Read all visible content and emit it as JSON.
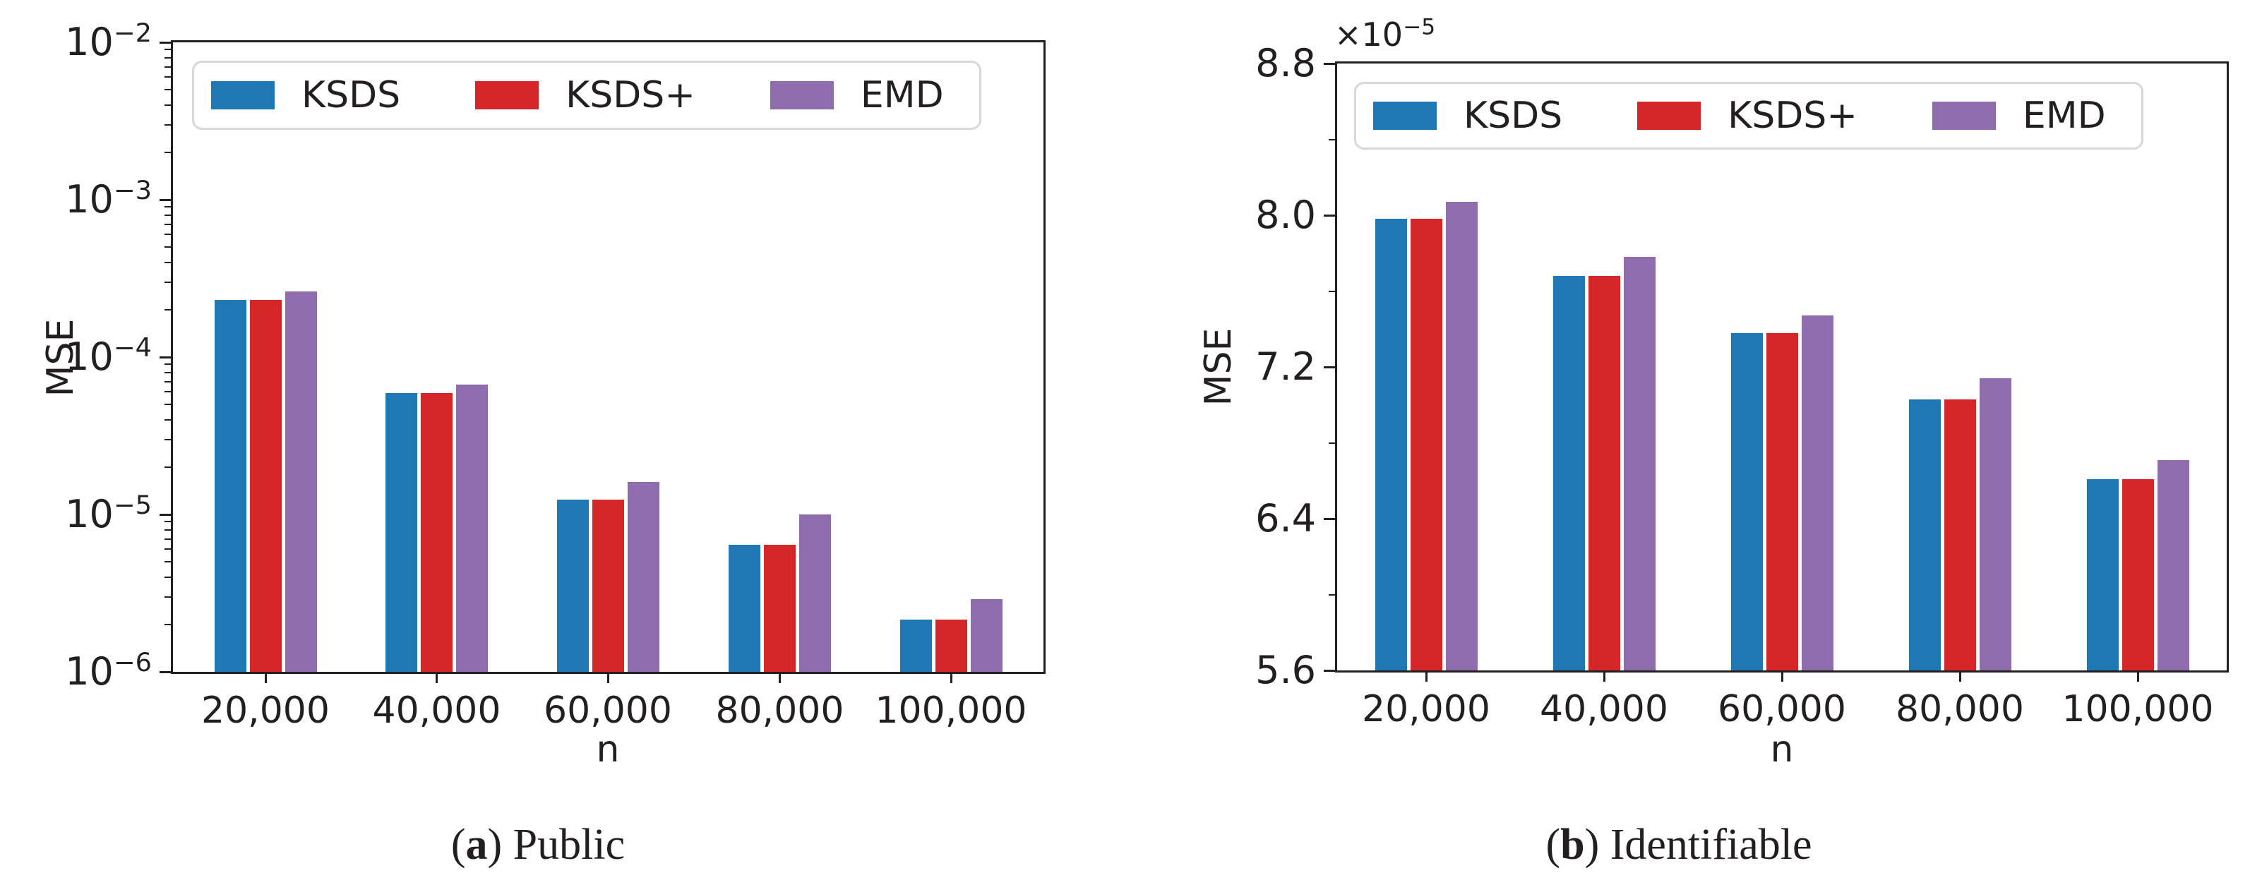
{
  "figure": {
    "background": "#ffffff",
    "text_color": "#231f20",
    "captions": [
      {
        "letter": "a",
        "text": "Public"
      },
      {
        "letter": "b",
        "text": "Identifiable"
      }
    ]
  },
  "chart_data": [
    {
      "type": "bar",
      "caption": "(a) Public",
      "xlabel": "n",
      "ylabel": "MSE",
      "yscale": "log",
      "ylim": [
        1e-06,
        0.01
      ],
      "grid": false,
      "yticks": [
        {
          "base": "10",
          "exp": "−2",
          "value": 0.01
        },
        {
          "base": "10",
          "exp": "−3",
          "value": 0.001
        },
        {
          "base": "10",
          "exp": "−4",
          "value": 0.0001
        },
        {
          "base": "10",
          "exp": "−5",
          "value": 1e-05
        },
        {
          "base": "10",
          "exp": "−6",
          "value": 1e-06
        }
      ],
      "categories": [
        "20,000",
        "40,000",
        "60,000",
        "80,000",
        "100,000"
      ],
      "series": [
        {
          "name": "KSDS",
          "color": "#1F77B4",
          "values": [
            0.00023,
            5.9e-05,
            1.24e-05,
            6.4e-06,
            2.15e-06
          ]
        },
        {
          "name": "KSDS+",
          "color": "#D62728",
          "values": [
            0.00023,
            5.9e-05,
            1.24e-05,
            6.4e-06,
            2.15e-06
          ]
        },
        {
          "name": "EMD",
          "color": "#8F6CAD",
          "values": [
            0.00026,
            6.7e-05,
            1.6e-05,
            1e-05,
            2.9e-06
          ]
        }
      ],
      "legend": {
        "entries": [
          "KSDS",
          "KSDS+",
          "EMD"
        ],
        "position": "upper center, 3 columns",
        "border_color": "#d8d8d8"
      }
    },
    {
      "type": "bar",
      "caption": "(b) Identifiable",
      "xlabel": "n",
      "ylabel": "MSE",
      "yscale": "linear",
      "offset_text": {
        "prefix": "×10",
        "exp": "−5"
      },
      "unit_scale": 1e-05,
      "ylim": [
        5.6,
        8.8
      ],
      "grid": false,
      "yticks": [
        {
          "label": "8.8",
          "value": 8.8
        },
        {
          "label": "8.0",
          "value": 8.0
        },
        {
          "label": "7.2",
          "value": 7.2
        },
        {
          "label": "6.4",
          "value": 6.4
        },
        {
          "label": "5.6",
          "value": 5.6
        }
      ],
      "minor_yticks": [
        8.4,
        7.6,
        6.8,
        6.0
      ],
      "categories": [
        "20,000",
        "40,000",
        "60,000",
        "80,000",
        "100,000"
      ],
      "series": [
        {
          "name": "KSDS",
          "color": "#1F77B4",
          "values": [
            7.98,
            7.68,
            7.38,
            7.03,
            6.61
          ]
        },
        {
          "name": "KSDS+",
          "color": "#D62728",
          "values": [
            7.98,
            7.68,
            7.38,
            7.03,
            6.61
          ]
        },
        {
          "name": "EMD",
          "color": "#8F6CAD",
          "values": [
            8.07,
            7.78,
            7.47,
            7.14,
            6.71
          ]
        }
      ],
      "legend": {
        "entries": [
          "KSDS",
          "KSDS+",
          "EMD"
        ],
        "position": "upper center, 3 columns",
        "border_color": "#d8d8d8"
      }
    }
  ]
}
